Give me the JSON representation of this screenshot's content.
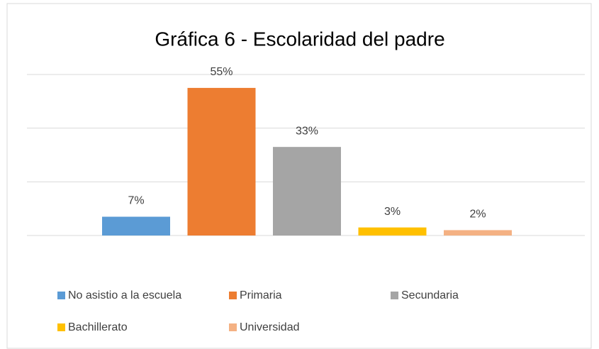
{
  "chart_data": {
    "type": "bar",
    "title": "Gráfica 6 - Escolaridad del padre",
    "series": [
      {
        "name": "No asistio a la escuela",
        "color": "#5b9bd5",
        "values": [
          7
        ],
        "value_labels": [
          "7%"
        ]
      },
      {
        "name": "Primaria",
        "color": "#ed7d31",
        "values": [
          55
        ],
        "value_labels": [
          "55%"
        ]
      },
      {
        "name": "Secundaria",
        "color": "#a5a5a5",
        "values": [
          33
        ],
        "value_labels": [
          "33%"
        ]
      },
      {
        "name": "Bachillerato",
        "color": "#ffc000",
        "values": [
          3
        ],
        "value_labels": [
          "3%"
        ]
      },
      {
        "name": "Universidad",
        "color": "#f4b183",
        "values": [
          2
        ],
        "value_labels": [
          "2%"
        ]
      }
    ],
    "ylim": [
      0,
      60
    ],
    "yticks": [
      0,
      20,
      40,
      60
    ],
    "grid": true,
    "legend": "bottom"
  }
}
